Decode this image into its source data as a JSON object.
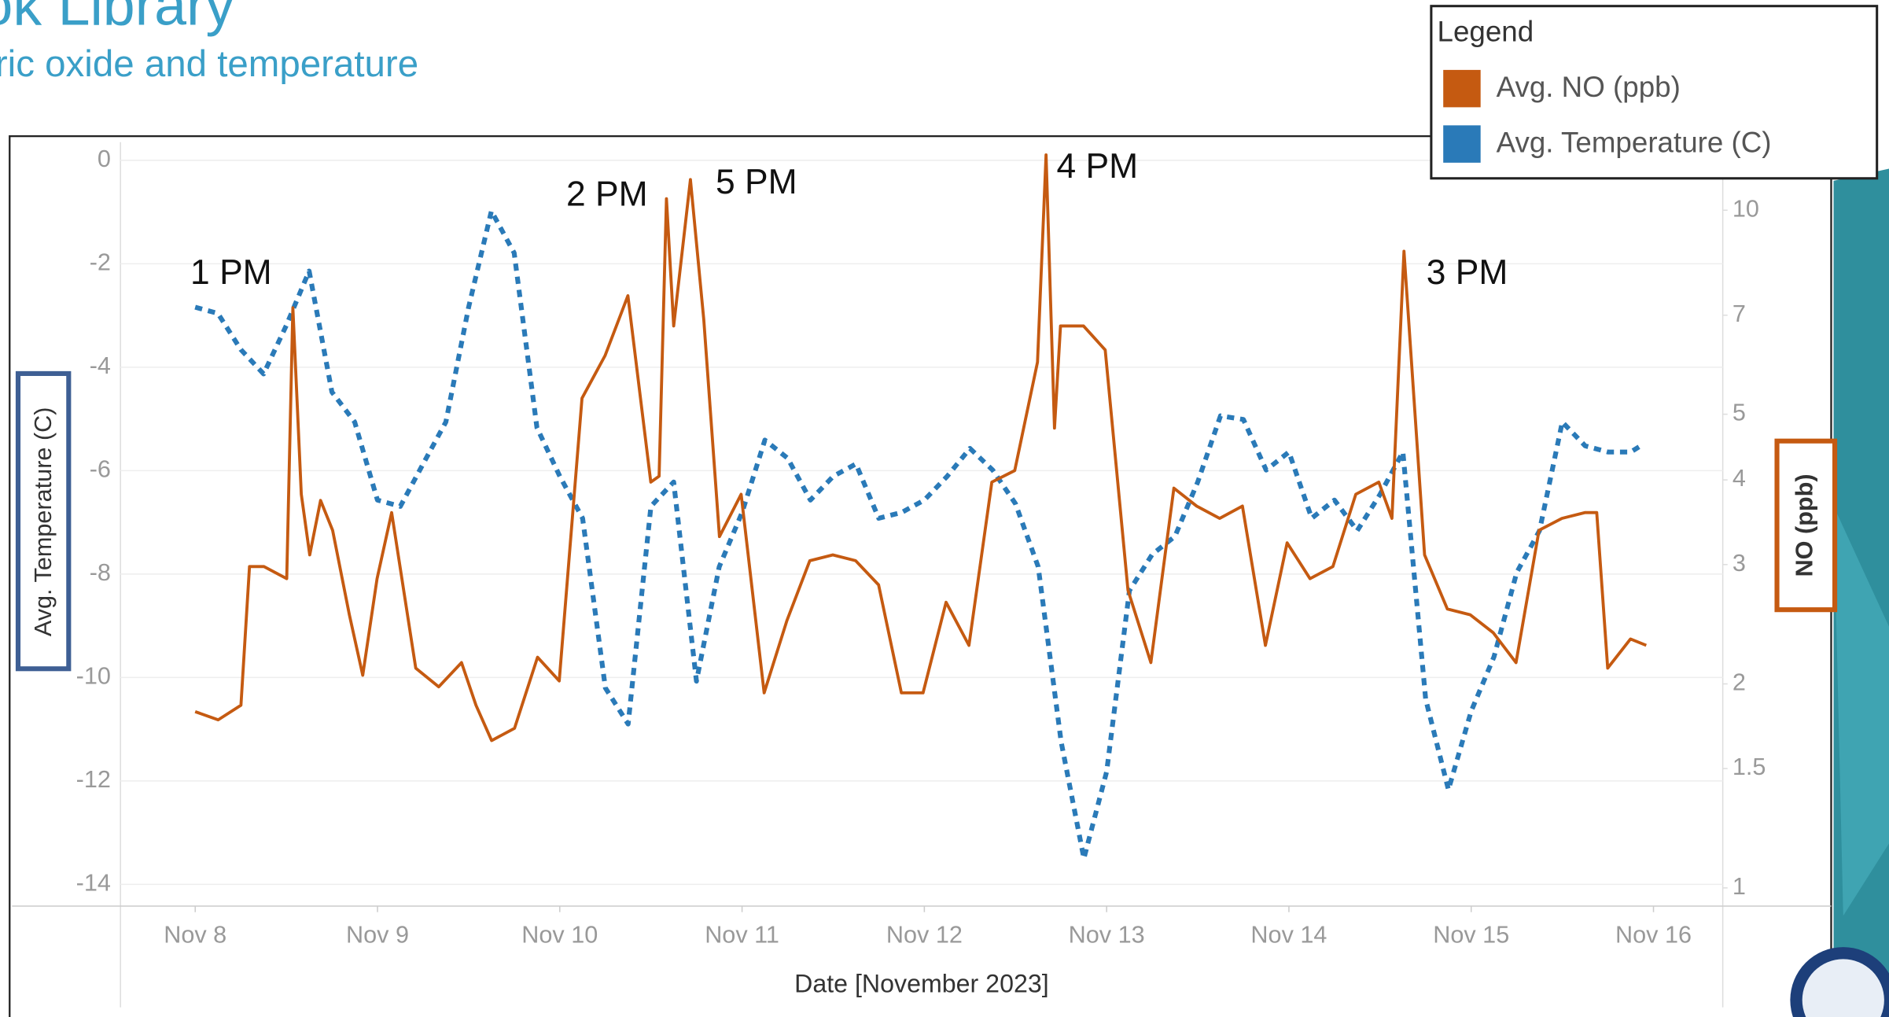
{
  "header": {
    "title": "ok Library",
    "subtitle": "ric oxide and temperature"
  },
  "chart_data": {
    "type": "line",
    "x_label": "Date [November 2023]",
    "y_label": "Avg. Temperature (C)",
    "y2_label": "NO (ppb)",
    "legend": {
      "title": "Legend",
      "position": "top-right"
    },
    "xlim": [
      7.59,
      16.38
    ],
    "xticks": [
      {
        "value": 8,
        "label": "Nov 8"
      },
      {
        "value": 9,
        "label": "Nov 9"
      },
      {
        "value": 10,
        "label": "Nov 10"
      },
      {
        "value": 11,
        "label": "Nov 11"
      },
      {
        "value": 12,
        "label": "Nov 12"
      },
      {
        "value": 13,
        "label": "Nov 13"
      },
      {
        "value": 14,
        "label": "Nov 14"
      },
      {
        "value": 15,
        "label": "Nov 15"
      },
      {
        "value": 16,
        "label": "Nov 16"
      }
    ],
    "ylim": [
      -14.42,
      0.35
    ],
    "yticks": [
      0,
      -2,
      -4,
      -6,
      -8,
      -10,
      -12,
      -14
    ],
    "y2lim": [
      0.94,
      12.6
    ],
    "y2scale": "log",
    "y2ticks": [
      1,
      1.5,
      2,
      3,
      4,
      5,
      7,
      10
    ],
    "grid": true,
    "series": [
      {
        "name": "Avg. NO (ppb)",
        "color": "#c55a11",
        "axis": "y2",
        "dashed": false,
        "x": [
          8.0,
          8.126,
          8.251,
          8.298,
          8.377,
          8.502,
          8.536,
          8.582,
          8.628,
          8.688,
          8.754,
          8.846,
          8.919,
          8.998,
          9.078,
          9.21,
          9.336,
          9.461,
          9.54,
          9.626,
          9.752,
          9.878,
          9.997,
          10.122,
          10.248,
          10.374,
          10.499,
          10.545,
          10.585,
          10.625,
          10.717,
          10.79,
          10.876,
          10.995,
          11.121,
          11.246,
          11.372,
          11.498,
          11.623,
          11.749,
          11.874,
          11.993,
          12.119,
          12.245,
          12.37,
          12.496,
          12.621,
          12.668,
          12.714,
          12.747,
          12.873,
          12.992,
          13.117,
          13.243,
          13.369,
          13.494,
          13.62,
          13.745,
          13.871,
          13.99,
          14.116,
          14.241,
          14.367,
          14.493,
          14.565,
          14.631,
          14.744,
          14.869,
          14.995,
          15.121,
          15.246,
          15.372,
          15.498,
          15.623,
          15.689,
          15.749,
          15.874,
          15.96
        ],
        "values": [
          1.82,
          1.77,
          1.86,
          2.98,
          2.98,
          2.86,
          7.18,
          3.81,
          3.1,
          3.73,
          3.37,
          2.53,
          2.06,
          2.86,
          3.58,
          2.11,
          1.98,
          2.15,
          1.86,
          1.65,
          1.72,
          2.19,
          2.02,
          5.28,
          6.1,
          7.48,
          3.97,
          4.05,
          10.4,
          6.75,
          11.1,
          6.89,
          3.3,
          3.81,
          1.94,
          2.48,
          3.04,
          3.1,
          3.04,
          2.8,
          1.94,
          1.94,
          2.64,
          2.28,
          3.97,
          4.13,
          5.97,
          12.07,
          4.77,
          6.75,
          6.75,
          6.22,
          2.75,
          2.15,
          3.89,
          3.66,
          3.51,
          3.66,
          2.28,
          3.23,
          2.86,
          2.98,
          3.81,
          3.97,
          3.51,
          8.7,
          3.1,
          2.58,
          2.53,
          2.38,
          2.15,
          3.37,
          3.51,
          3.58,
          3.58,
          2.11,
          2.33,
          2.28
        ]
      },
      {
        "name": "Avg. Temperature (C)",
        "color": "#2a7ab8",
        "axis": "y",
        "dashed": true,
        "x": [
          8.0,
          8.125,
          8.25,
          8.375,
          8.5,
          8.625,
          8.75,
          8.875,
          9.0,
          9.125,
          9.25,
          9.375,
          9.5,
          9.625,
          9.75,
          9.875,
          10.0,
          10.125,
          10.25,
          10.375,
          10.5,
          10.625,
          10.75,
          10.875,
          11.0,
          11.125,
          11.25,
          11.375,
          11.5,
          11.625,
          11.75,
          11.875,
          12.0,
          12.125,
          12.25,
          12.375,
          12.5,
          12.625,
          12.75,
          12.875,
          13.0,
          13.125,
          13.25,
          13.375,
          13.5,
          13.625,
          13.75,
          13.875,
          14.0,
          14.125,
          14.25,
          14.375,
          14.5,
          14.625,
          14.75,
          14.875,
          15.0,
          15.125,
          15.25,
          15.375,
          15.5,
          15.625,
          15.75,
          15.875,
          15.93
        ],
        "values": [
          -2.84,
          -2.96,
          -3.66,
          -4.13,
          -3.19,
          -2.14,
          -4.48,
          -5.06,
          -6.57,
          -6.69,
          -5.87,
          -5.06,
          -2.84,
          -0.98,
          -1.79,
          -5.17,
          -6.11,
          -6.92,
          -10.2,
          -10.9,
          -6.69,
          -6.22,
          -10.07,
          -7.86,
          -6.81,
          -5.41,
          -5.76,
          -6.57,
          -6.11,
          -5.87,
          -6.92,
          -6.81,
          -6.57,
          -6.11,
          -5.57,
          -5.99,
          -6.64,
          -7.86,
          -11.24,
          -13.5,
          -11.82,
          -8.32,
          -7.62,
          -7.27,
          -6.22,
          -4.94,
          -5.01,
          -5.99,
          -5.64,
          -6.92,
          -6.57,
          -7.16,
          -6.46,
          -5.64,
          -10.42,
          -12.17,
          -10.65,
          -9.6,
          -7.97,
          -7.16,
          -5.06,
          -5.52,
          -5.64,
          -5.64,
          -5.52
        ]
      }
    ],
    "annotations": [
      {
        "text": "1 PM"
      },
      {
        "text": "2 PM"
      },
      {
        "text": "5 PM"
      },
      {
        "text": "4 PM"
      },
      {
        "text": "3 PM"
      }
    ]
  }
}
